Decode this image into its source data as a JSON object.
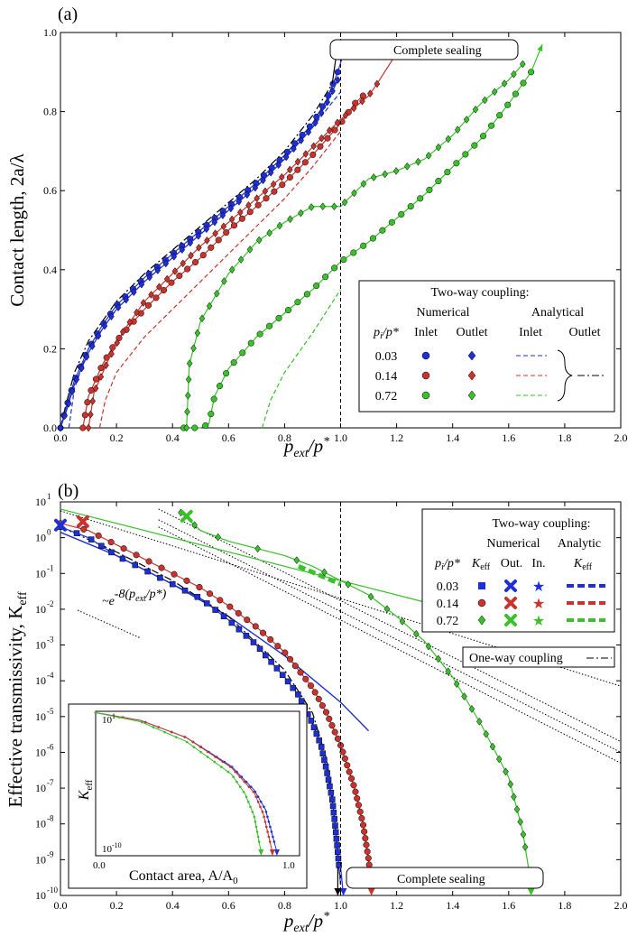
{
  "colors": {
    "blue": "#1f2fd6",
    "red": "#c8332d",
    "green": "#39c02b",
    "black": "#000000",
    "dotted": "#000000"
  },
  "chart_data": [
    {
      "panel": "(a)",
      "type": "line",
      "xlabel_base": "p",
      "xlabel_sub": "ext",
      "xlabel_rest": "/p",
      "xlabel_sup": "*",
      "ylabel": "Contact length, 2a/λ",
      "xlim": [
        0,
        2.0
      ],
      "ylim": [
        0,
        1.0
      ],
      "xticks": [
        "0.0",
        "0.2",
        "0.4",
        "0.6",
        "0.8",
        "1.0",
        "1.2",
        "1.4",
        "1.6",
        "1.8",
        "2.0"
      ],
      "yticks": [
        "0.0",
        "0.2",
        "0.4",
        "0.6",
        "0.8",
        "1.0"
      ],
      "annotation": "Complete sealing",
      "legend": {
        "title": "Two-way coupling:",
        "col_numerical": "Numerical",
        "col_analytical": "Analytical",
        "inlet": "Inlet",
        "outlet": "Outlet",
        "pi_label": "p",
        "pi_sub": "i",
        "pi_rest": "/p*",
        "rows": [
          "0.03",
          "0.14",
          "0.72"
        ]
      },
      "series": [
        {
          "name": "0.03 inlet",
          "color": "blue",
          "marker": "circle",
          "x": [
            0.0,
            0.02,
            0.05,
            0.1,
            0.15,
            0.2,
            0.3,
            0.4,
            0.5,
            0.6,
            0.7,
            0.8,
            0.9,
            0.95,
            0.99
          ],
          "y": [
            0.0,
            0.05,
            0.12,
            0.2,
            0.26,
            0.31,
            0.38,
            0.44,
            0.5,
            0.56,
            0.62,
            0.69,
            0.77,
            0.83,
            0.9
          ]
        },
        {
          "name": "0.03 outlet",
          "color": "blue",
          "marker": "diamond",
          "x": [
            0.0,
            0.02,
            0.05,
            0.1,
            0.15,
            0.2,
            0.3,
            0.4,
            0.5,
            0.6,
            0.7,
            0.8,
            0.9,
            0.95,
            0.99
          ],
          "y": [
            0.0,
            0.04,
            0.11,
            0.19,
            0.25,
            0.3,
            0.37,
            0.43,
            0.49,
            0.55,
            0.61,
            0.68,
            0.76,
            0.82,
            0.88
          ]
        },
        {
          "name": "0.14 inlet",
          "color": "red",
          "marker": "circle",
          "x": [
            0.08,
            0.1,
            0.15,
            0.2,
            0.3,
            0.4,
            0.5,
            0.6,
            0.7,
            0.8,
            0.9,
            1.0,
            1.05,
            1.08
          ],
          "y": [
            0.0,
            0.08,
            0.16,
            0.22,
            0.3,
            0.37,
            0.43,
            0.5,
            0.56,
            0.62,
            0.69,
            0.77,
            0.82,
            0.84
          ]
        },
        {
          "name": "0.14 outlet",
          "color": "red",
          "marker": "diamond",
          "x": [
            0.1,
            0.12,
            0.17,
            0.22,
            0.3,
            0.4,
            0.5,
            0.6,
            0.7,
            0.8,
            0.9,
            1.0,
            1.05,
            1.1,
            1.13
          ],
          "y": [
            0.0,
            0.09,
            0.17,
            0.24,
            0.32,
            0.39,
            0.46,
            0.52,
            0.58,
            0.64,
            0.71,
            0.78,
            0.81,
            0.84,
            0.87
          ]
        },
        {
          "name": "0.72 inlet",
          "color": "green",
          "marker": "circle",
          "x": [
            0.44,
            0.5,
            0.53,
            0.55,
            0.6,
            0.7,
            0.8,
            0.9,
            1.0,
            1.1,
            1.2,
            1.3,
            1.4,
            1.5,
            1.6,
            1.68
          ],
          "y": [
            0.0,
            0.0,
            0.01,
            0.08,
            0.15,
            0.23,
            0.29,
            0.35,
            0.42,
            0.47,
            0.53,
            0.59,
            0.66,
            0.73,
            0.82,
            0.9
          ]
        },
        {
          "name": "0.72 outlet",
          "color": "green",
          "marker": "diamond",
          "x": [
            0.45,
            0.46,
            0.5,
            0.6,
            0.7,
            0.8,
            0.9,
            1.0,
            1.1,
            1.2,
            1.3,
            1.4,
            1.5,
            1.6,
            1.65
          ],
          "y": [
            0.0,
            0.16,
            0.27,
            0.39,
            0.47,
            0.52,
            0.56,
            0.56,
            0.63,
            0.65,
            0.68,
            0.74,
            0.82,
            0.88,
            0.92
          ]
        }
      ],
      "analytic": [
        {
          "color": "blue",
          "x": [
            0.03,
            0.05,
            0.1,
            0.2,
            0.3,
            0.4,
            0.5,
            0.6,
            0.7,
            0.8,
            0.9,
            1.0
          ],
          "y": [
            0.0,
            0.1,
            0.2,
            0.3,
            0.37,
            0.43,
            0.49,
            0.55,
            0.61,
            0.68,
            0.76,
            0.85
          ]
        },
        {
          "color": "red",
          "x": [
            0.14,
            0.16,
            0.2,
            0.3,
            0.4,
            0.5,
            0.6,
            0.7,
            0.8,
            0.9,
            1.0
          ],
          "y": [
            0.0,
            0.07,
            0.14,
            0.23,
            0.3,
            0.37,
            0.44,
            0.51,
            0.58,
            0.66,
            0.75
          ]
        },
        {
          "color": "green",
          "x": [
            0.72,
            0.75,
            0.8,
            0.9,
            1.0
          ],
          "y": [
            0.0,
            0.07,
            0.14,
            0.24,
            0.35
          ]
        }
      ],
      "oneway": {
        "x": [
          0.0,
          0.02,
          0.05,
          0.1,
          0.2,
          0.3,
          0.4,
          0.5,
          0.6,
          0.7,
          0.8,
          0.9,
          0.97
        ],
        "y": [
          0.0,
          0.06,
          0.14,
          0.22,
          0.32,
          0.39,
          0.45,
          0.51,
          0.57,
          0.63,
          0.7,
          0.79,
          0.87
        ]
      }
    },
    {
      "panel": "(b)",
      "type": "line",
      "yscale": "log",
      "xlabel_base": "p",
      "xlabel_sub": "ext",
      "xlabel_rest": "/p",
      "xlabel_sup": "*",
      "ylabel_base": "Effective transmissivity, K",
      "ylabel_sub": "eff",
      "xlim": [
        0,
        2.0
      ],
      "ylim_exp": [
        -10,
        1
      ],
      "xticks": [
        "0.0",
        "0.2",
        "0.4",
        "0.6",
        "0.8",
        "1.0",
        "1.2",
        "1.4",
        "1.6",
        "1.8",
        "2.0"
      ],
      "ytick_exps": [
        "1",
        "0",
        "-1",
        "-2",
        "-3",
        "-4",
        "-5",
        "-6",
        "-7",
        "-8",
        "-9",
        "-10"
      ],
      "ytick_base": "10",
      "annotation": "Complete sealing",
      "slope_label_pre": "~e",
      "slope_label_exp": "-8(p",
      "slope_label_sub": "ext",
      "slope_label_post": "/p*)",
      "oneway_label": "One-way coupling",
      "legend": {
        "title": "Two-way coupling:",
        "col_numerical": "Numerical",
        "col_analytic": "Analytic",
        "keff": "K",
        "keff_sub": "eff",
        "out": "Out.",
        "in": "In.",
        "rows": [
          "0.03",
          "0.14",
          "0.72"
        ]
      },
      "series": [
        {
          "name": "0.03",
          "color": "blue",
          "marker": "square",
          "x": [
            0.0,
            0.1,
            0.2,
            0.3,
            0.4,
            0.5,
            0.6,
            0.7,
            0.8,
            0.85,
            0.9,
            0.93,
            0.95,
            0.97,
            0.98,
            0.99,
            1.0
          ],
          "log_y": [
            0.3,
            0.0,
            -0.5,
            -0.9,
            -1.3,
            -1.7,
            -2.3,
            -3.0,
            -3.9,
            -4.4,
            -5.2,
            -5.8,
            -6.5,
            -7.3,
            -8.0,
            -8.8,
            -9.7
          ]
        },
        {
          "name": "0.14",
          "color": "red",
          "marker": "circle",
          "x": [
            0.0,
            0.1,
            0.2,
            0.3,
            0.4,
            0.5,
            0.6,
            0.7,
            0.8,
            0.9,
            0.95,
            1.0,
            1.05,
            1.08,
            1.1,
            1.11
          ],
          "log_y": [
            0.4,
            0.2,
            -0.2,
            -0.6,
            -1.0,
            -1.4,
            -1.9,
            -2.5,
            -3.2,
            -4.2,
            -4.9,
            -5.8,
            -7.0,
            -8.0,
            -9.0,
            -9.7
          ]
        },
        {
          "name": "0.72",
          "color": "green",
          "marker": "diamond",
          "x": [
            0.43,
            0.5,
            0.6,
            0.7,
            0.8,
            0.9,
            1.0,
            1.1,
            1.2,
            1.3,
            1.4,
            1.5,
            1.6,
            1.65,
            1.68
          ],
          "log_y": [
            0.7,
            0.2,
            -0.1,
            -0.3,
            -0.5,
            -0.8,
            -1.2,
            -1.6,
            -2.2,
            -2.9,
            -3.9,
            -5.2,
            -6.7,
            -8.2,
            -9.7
          ]
        }
      ],
      "markers": [
        {
          "series": "0.03",
          "x": 0.0,
          "log_y": 0.35,
          "shape": "cross"
        },
        {
          "series": "0.14",
          "x": 0.08,
          "log_y": 0.45,
          "shape": "cross"
        },
        {
          "series": "0.72",
          "x": 0.45,
          "log_y": 0.6,
          "shape": "cross"
        }
      ],
      "analytic": [
        {
          "color": "blue",
          "x": [
            0.0,
            0.2,
            0.4,
            0.6,
            0.8,
            1.0,
            1.1
          ],
          "log_y": [
            0.15,
            -0.5,
            -1.3,
            -2.2,
            -3.3,
            -4.6,
            -5.4
          ]
        },
        {
          "color": "green",
          "x": [
            0.85,
            1.0
          ],
          "log_y": [
            -0.8,
            -1.3
          ]
        }
      ],
      "oneway": {
        "x": [
          0.0,
          0.2,
          0.4,
          0.6,
          0.8,
          0.9,
          0.95,
          0.97,
          0.98,
          0.99,
          1.0
        ],
        "log_y": [
          0.3,
          -0.4,
          -1.2,
          -2.2,
          -3.7,
          -4.9,
          -6.2,
          -7.2,
          -8.0,
          -8.9,
          -9.7
        ]
      },
      "fit_lines": [
        {
          "x": [
            0.0,
            2.0
          ],
          "log_y": [
            0.75,
            -4.15
          ]
        },
        {
          "x": [
            0.35,
            2.0
          ],
          "log_y": [
            0.8,
            -5.7
          ]
        },
        {
          "x": [
            0.35,
            2.0
          ],
          "log_y": [
            0.5,
            -6.0
          ]
        },
        {
          "x": [
            0.35,
            2.0
          ],
          "log_y": [
            0.3,
            -6.3
          ]
        }
      ],
      "inset": {
        "xlabel": "Contact area, A/A",
        "xlabel_sub": "0",
        "ylabel": "K",
        "ylabel_sub": "eff",
        "xticks": [
          "0.0",
          "1.0"
        ],
        "yticks_base": "10",
        "ytick_exps": [
          "1",
          "-10"
        ],
        "series": [
          {
            "color": "blue",
            "x": [
              0.0,
              0.2,
              0.4,
              0.6,
              0.7,
              0.75,
              0.8
            ],
            "log_y": [
              0.9,
              0.3,
              -1.0,
              -3.2,
              -5.0,
              -6.5,
              -9.7
            ]
          },
          {
            "color": "red",
            "x": [
              0.0,
              0.2,
              0.4,
              0.6,
              0.7,
              0.74,
              0.78
            ],
            "log_y": [
              0.9,
              0.3,
              -1.0,
              -3.3,
              -5.2,
              -6.8,
              -9.7
            ]
          },
          {
            "color": "green",
            "x": [
              0.0,
              0.2,
              0.4,
              0.6,
              0.66,
              0.7,
              0.73
            ],
            "log_y": [
              0.9,
              0.2,
              -1.3,
              -3.8,
              -5.3,
              -7.0,
              -9.7
            ]
          }
        ]
      }
    }
  ]
}
